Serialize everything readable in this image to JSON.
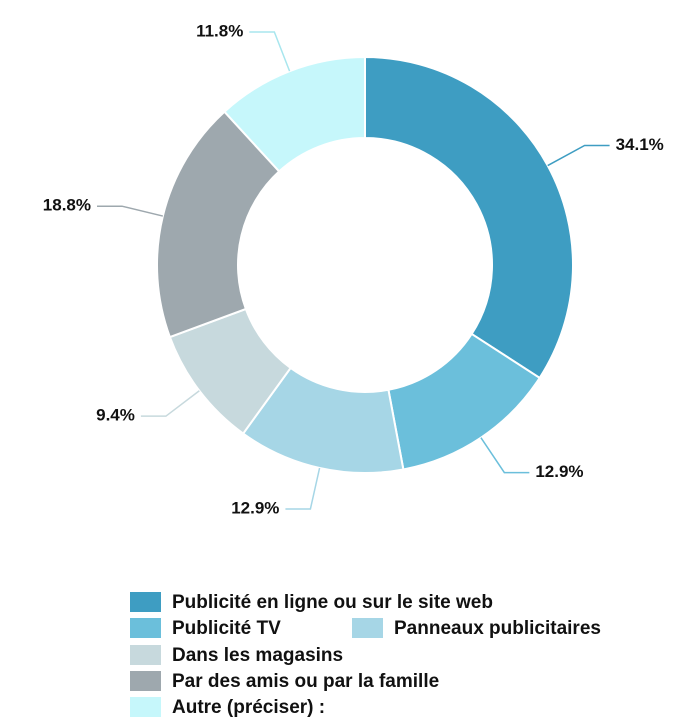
{
  "chart_data": {
    "type": "donut",
    "categories": [
      "Publicité en ligne ou sur le site web",
      "Publicité TV",
      "Panneaux publicitaires",
      "Dans les magasins",
      "Par des amis ou par la famille",
      "Autre (préciser) :"
    ],
    "values": [
      34.1,
      12.9,
      12.9,
      9.4,
      18.8,
      11.8
    ],
    "value_labels": [
      "34.1%",
      "12.9%",
      "12.9%",
      "9.4%",
      "18.8%",
      "11.8%"
    ],
    "colors": [
      "#3e9dc2",
      "#6bbfdb",
      "#a6d6e6",
      "#c7d9dd",
      "#9ea8ae",
      "#c6f7fb"
    ],
    "legend": "bottom"
  }
}
